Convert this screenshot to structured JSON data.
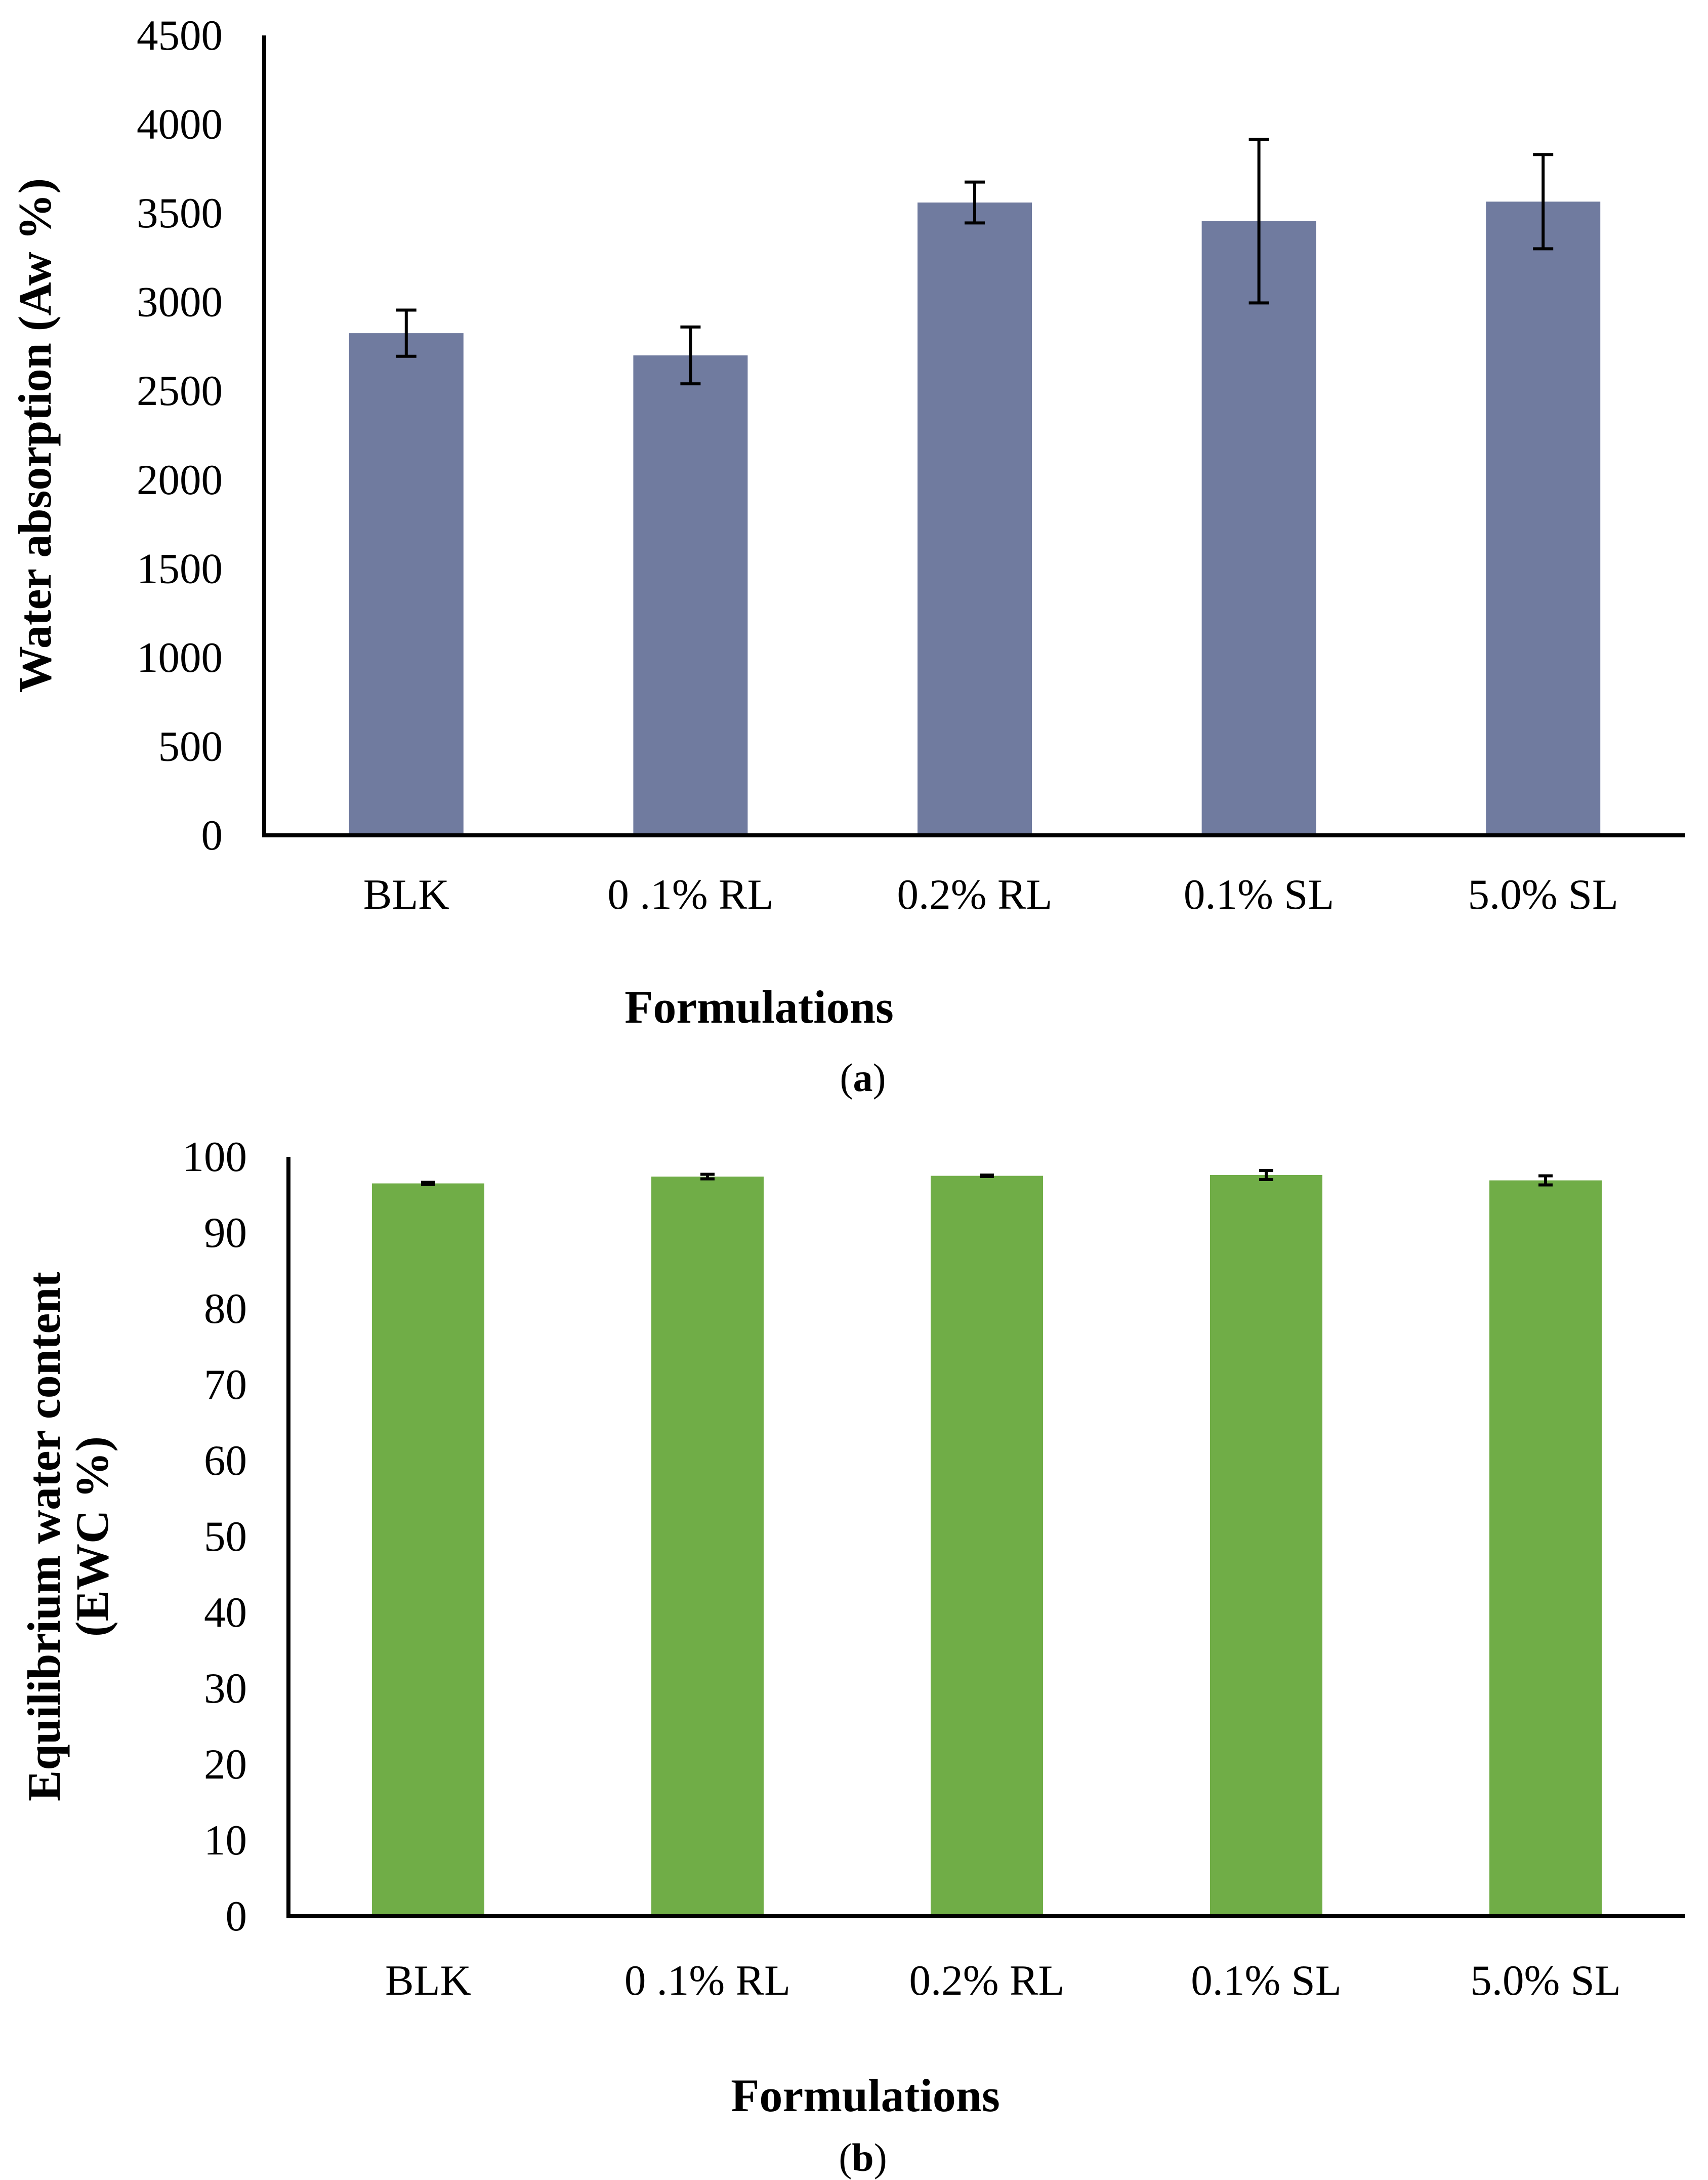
{
  "chart_data": [
    {
      "type": "bar",
      "panel_label": "(a)",
      "panel_label_prefix": "(",
      "panel_label_letter": "a",
      "panel_label_suffix": ")",
      "title": "",
      "xlabel": "Formulations",
      "ylabel": "Water absorption (Aw %)",
      "ylabel_lines": [
        "Water absorption (Aw %)"
      ],
      "ylim": [
        0,
        4500
      ],
      "yticks": [
        0,
        500,
        1000,
        1500,
        2000,
        2500,
        3000,
        3500,
        4000,
        4500
      ],
      "grid": false,
      "legend": "none",
      "bar_color": "#707b9f",
      "categories": [
        "BLK",
        "0 .1% RL",
        "0.2% RL",
        "0.1% SL",
        "5.0% SL"
      ],
      "values": [
        2825,
        2700,
        3560,
        3455,
        3565
      ],
      "errors": [
        130,
        160,
        115,
        460,
        265
      ]
    },
    {
      "type": "bar",
      "panel_label": "(b)",
      "panel_label_prefix": "(",
      "panel_label_letter": "b",
      "panel_label_suffix": ")",
      "title": "",
      "xlabel": "Formulations",
      "ylabel": "Equilibrium water content (EWC %)",
      "ylabel_lines": [
        "Equilibrium water content",
        "(EWC %)"
      ],
      "ylim": [
        0,
        100
      ],
      "yticks": [
        0,
        10,
        20,
        30,
        40,
        50,
        60,
        70,
        80,
        90,
        100
      ],
      "grid": false,
      "legend": "none",
      "bar_color": "#70ad47",
      "categories": [
        "BLK",
        "0 .1% RL",
        "0.2% RL",
        "0.1% SL",
        "5.0% SL"
      ],
      "values": [
        96.5,
        97.4,
        97.5,
        97.6,
        96.9
      ],
      "errors": [
        0.15,
        0.3,
        0.1,
        0.6,
        0.6
      ]
    }
  ]
}
